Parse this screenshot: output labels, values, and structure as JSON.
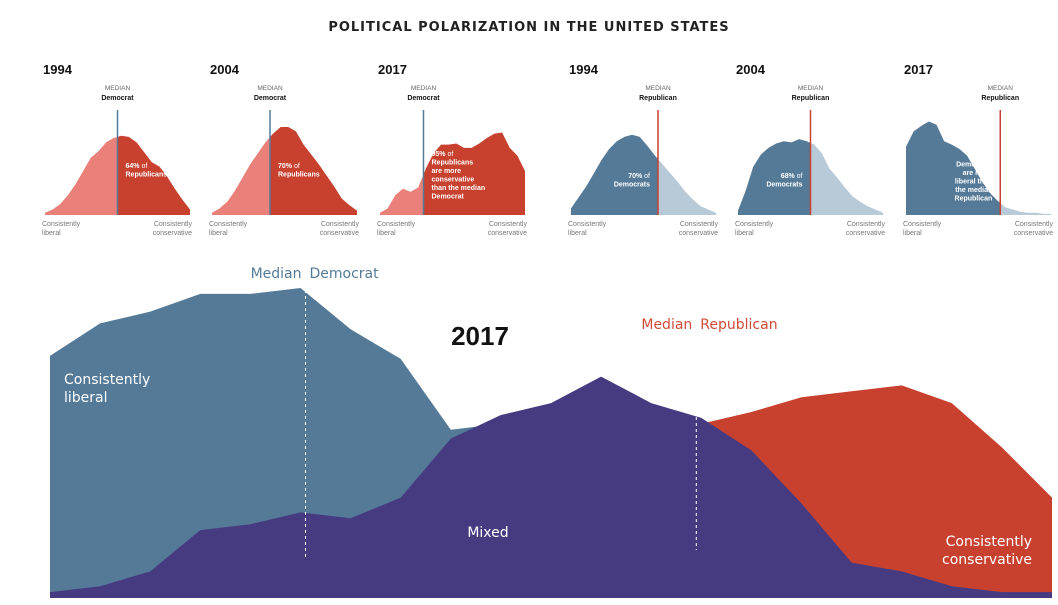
{
  "title": "POLITICAL POLARIZATION IN THE UNITED STATES",
  "colors": {
    "republican": "#c8412f",
    "republican_light": "#e9807a",
    "democrat": "#557a98",
    "democrat_light": "#b8cad8",
    "mixed": "#463b80",
    "median_dem_label": "#557a98",
    "median_rep_label": "#d24a36"
  },
  "small_axis": {
    "left": "Consistently liberal",
    "right": "Consistently conservative"
  },
  "small_charts": [
    {
      "year": "1994",
      "party": "republican",
      "median_small": "MEDIAN",
      "median_bold": "Democrat",
      "annotation": [
        [
          "64%",
          " of"
        ],
        [
          "Republicans",
          ""
        ]
      ],
      "median_pos": 0.5,
      "profile": [
        2,
        5,
        10,
        18,
        28,
        40,
        52,
        58,
        66,
        70,
        72,
        71,
        66,
        57,
        48,
        44,
        35,
        24,
        14,
        5
      ]
    },
    {
      "year": "2004",
      "party": "republican",
      "median_small": "MEDIAN",
      "median_bold": "Democrat",
      "annotation": [
        [
          "70%",
          " of"
        ],
        [
          "Republicans",
          ""
        ]
      ],
      "median_pos": 0.4,
      "profile": [
        2,
        6,
        12,
        22,
        34,
        46,
        56,
        66,
        74,
        80,
        80,
        76,
        64,
        55,
        46,
        36,
        26,
        15,
        9,
        4
      ]
    },
    {
      "year": "2017",
      "party": "republican",
      "median_small": "MEDIAN",
      "median_bold": "Democrat",
      "annotation": [
        [
          "95%",
          " of"
        ],
        [
          "Republicans",
          ""
        ],
        [
          "are more",
          ""
        ],
        [
          "conservative",
          ""
        ],
        [
          "than the median",
          ""
        ],
        [
          "Democrat",
          ""
        ]
      ],
      "median_pos": 0.3,
      "profile": [
        2,
        6,
        18,
        24,
        21,
        25,
        42,
        56,
        64,
        64,
        65,
        61,
        61,
        65,
        70,
        74,
        75,
        61,
        54,
        40
      ]
    },
    {
      "year": "1994",
      "party": "democrat",
      "median_small": "MEDIAN",
      "median_bold": "Republican",
      "annotation": [
        [
          "70%",
          " of"
        ],
        [
          "Democrats",
          ""
        ]
      ],
      "median_pos": 0.6,
      "profile": [
        6,
        16,
        26,
        38,
        50,
        60,
        67,
        71,
        73,
        71,
        63,
        54,
        46,
        38,
        30,
        21,
        14,
        8,
        5,
        2
      ]
    },
    {
      "year": "2004",
      "party": "democrat",
      "median_small": "MEDIAN",
      "median_bold": "Republican",
      "annotation": [
        [
          "68%",
          " of"
        ],
        [
          "Democrats",
          ""
        ]
      ],
      "median_pos": 0.5,
      "profile": [
        4,
        22,
        44,
        55,
        61,
        65,
        67,
        66,
        69,
        67,
        64,
        56,
        42,
        34,
        25,
        17,
        12,
        8,
        5,
        2
      ]
    },
    {
      "year": "2017",
      "party": "democrat",
      "median_small": "MEDIAN",
      "median_bold": "Republican",
      "annotation": [
        [
          "97%",
          " of"
        ],
        [
          "Democrats",
          ""
        ],
        [
          "are more",
          ""
        ],
        [
          "liberal than",
          ""
        ],
        [
          "the median",
          ""
        ],
        [
          "Republican",
          ""
        ]
      ],
      "median_pos": 0.65,
      "profile": [
        62,
        76,
        81,
        85,
        82,
        67,
        64,
        60,
        54,
        42,
        30,
        20,
        13,
        7,
        5,
        3,
        2,
        2,
        1,
        1
      ]
    }
  ],
  "chart_data": {
    "type": "area",
    "title": "2017",
    "x_labels": {
      "left": "Consistently liberal",
      "right": "Consistently conservative"
    },
    "x": [
      0,
      1,
      2,
      3,
      4,
      5,
      6,
      7,
      8,
      9,
      10,
      11,
      12,
      13,
      14,
      15,
      16,
      17,
      18,
      19,
      20
    ],
    "series": [
      {
        "name": "Democrats",
        "values": [
          82,
          93,
          97,
          103,
          103,
          105,
          91,
          81,
          57,
          59,
          51,
          45,
          44,
          42,
          26,
          16,
          8,
          6,
          6,
          6,
          3
        ]
      },
      {
        "name": "Mixed",
        "values": [
          2,
          4,
          9,
          23,
          25,
          29,
          27,
          34,
          54,
          62,
          66,
          75,
          66,
          61,
          50,
          32,
          12,
          9,
          4,
          2,
          2
        ]
      },
      {
        "name": "Republicans",
        "values": [
          0,
          0,
          0,
          0,
          0,
          0,
          0,
          1,
          2,
          6,
          37,
          46,
          58,
          59,
          63,
          68,
          70,
          72,
          66,
          51,
          34
        ]
      }
    ],
    "median_democrat_x": 5.1,
    "median_republican_x": 12.9,
    "labels": {
      "median_word": "Median",
      "median_democrat": "Democrat",
      "median_republican": "Republican",
      "left_line1": "Consistently",
      "left_line2": "liberal",
      "mixed": "Mixed",
      "right_line1": "Consistently",
      "right_line2": "conservative"
    }
  }
}
